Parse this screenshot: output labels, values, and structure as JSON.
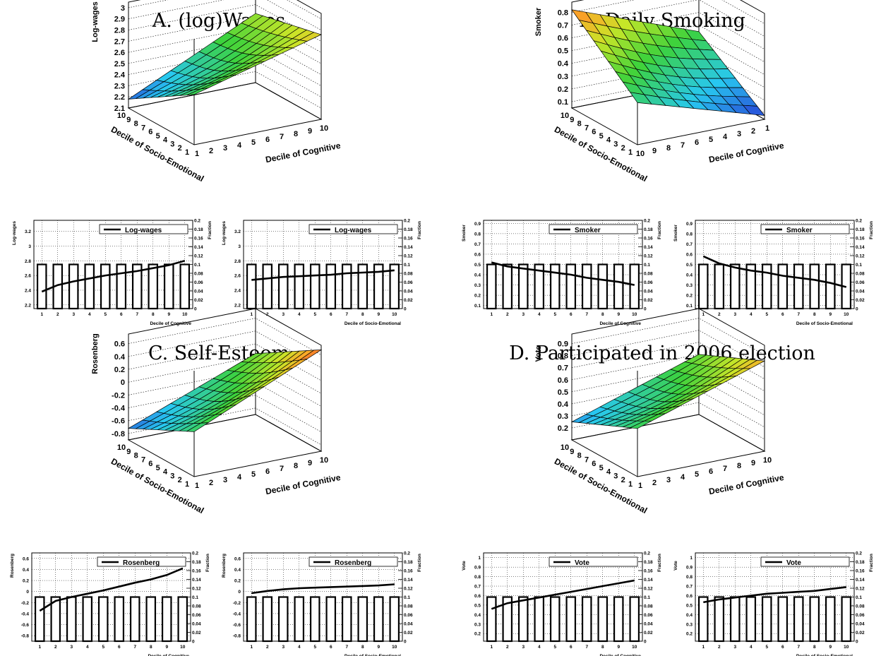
{
  "figure": {
    "panels": [
      {
        "letter": "A",
        "title": "A. (log)Wages"
      },
      {
        "letter": "B",
        "title": "B. Daily Smoking"
      },
      {
        "letter": "C",
        "title": "C. Self-Esteem"
      },
      {
        "letter": "D",
        "title": "D. Participated in 2006 election"
      }
    ]
  },
  "chart_data": [
    {
      "panel": "A",
      "type": "surface",
      "zlabel": "Log-wages",
      "xlabel": "Decile of Cognitive",
      "ylabel": "Decile of Socio-Emotional",
      "x": [
        1,
        2,
        3,
        4,
        5,
        6,
        7,
        8,
        9,
        10
      ],
      "y": [
        1,
        2,
        3,
        4,
        5,
        6,
        7,
        8,
        9,
        10
      ],
      "zlim": [
        2.1,
        3.05
      ],
      "zticks": [
        "2.1",
        "2.2",
        "2.3",
        "2.4",
        "2.5",
        "2.6",
        "2.7",
        "2.8",
        "2.9",
        "3"
      ],
      "corner_values": {
        "cog1_se1": 2.18,
        "cog10_se1": 2.72,
        "cog1_se10": 2.55,
        "cog10_se10": 2.86
      },
      "view": "cognitive-front"
    },
    {
      "panel": "A",
      "type": "bar+line",
      "xlabel": "Decile of Cognitive",
      "ylabel": "Log-wages",
      "y2label": "Fraction",
      "categories": [
        "1",
        "2",
        "3",
        "4",
        "5",
        "6",
        "7",
        "8",
        "9",
        "10"
      ],
      "bar_fraction": [
        0.1,
        0.1,
        0.1,
        0.1,
        0.1,
        0.1,
        0.1,
        0.1,
        0.1,
        0.1
      ],
      "series": [
        {
          "name": "Log-wages",
          "values": [
            2.38,
            2.47,
            2.52,
            2.56,
            2.6,
            2.63,
            2.66,
            2.7,
            2.74,
            2.8
          ]
        }
      ],
      "ylim": [
        2.15,
        3.35
      ],
      "y2lim": [
        0,
        0.2
      ],
      "yticks": [
        "2.2",
        "2.4",
        "2.6",
        "2.8",
        "3",
        "3.2"
      ],
      "y2ticks": [
        "0",
        "0.02",
        "0.04",
        "0.06",
        "0.08",
        "0.1",
        "0.12",
        "0.14",
        "0.16",
        "0.18",
        "0.2"
      ]
    },
    {
      "panel": "A",
      "type": "bar+line",
      "xlabel": "Decile of Socio-Emotional",
      "ylabel": "Log-wages",
      "y2label": "Fraction",
      "categories": [
        "1",
        "2",
        "3",
        "4",
        "5",
        "6",
        "7",
        "8",
        "9",
        "10"
      ],
      "bar_fraction": [
        0.1,
        0.1,
        0.1,
        0.1,
        0.1,
        0.1,
        0.1,
        0.1,
        0.1,
        0.1
      ],
      "series": [
        {
          "name": "Log-wages",
          "values": [
            2.54,
            2.56,
            2.58,
            2.59,
            2.6,
            2.61,
            2.63,
            2.64,
            2.65,
            2.67
          ]
        }
      ],
      "ylim": [
        2.15,
        3.35
      ],
      "y2lim": [
        0,
        0.2
      ],
      "yticks": [
        "2.2",
        "2.4",
        "2.6",
        "2.8",
        "3",
        "3.2"
      ],
      "y2ticks": [
        "0",
        "0.02",
        "0.04",
        "0.06",
        "0.08",
        "0.1",
        "0.12",
        "0.14",
        "0.16",
        "0.18",
        "0.2"
      ]
    },
    {
      "panel": "B",
      "type": "surface",
      "zlabel": "Smoker",
      "xlabel": "Decile of Cognitive",
      "ylabel": "Decile of Socio-Emotional",
      "x": [
        1,
        2,
        3,
        4,
        5,
        6,
        7,
        8,
        9,
        10
      ],
      "y": [
        1,
        2,
        3,
        4,
        5,
        6,
        7,
        8,
        9,
        10
      ],
      "zlim": [
        0.05,
        0.88
      ],
      "zticks": [
        "0.1",
        "0.2",
        "0.3",
        "0.4",
        "0.5",
        "0.6",
        "0.7",
        "0.8"
      ],
      "corner_values": {
        "cog1_se1": 0.82,
        "cog10_se1": 0.38,
        "cog1_se10": 0.45,
        "cog10_se10": 0.08
      },
      "view": "cognitive-reversed"
    },
    {
      "panel": "B",
      "type": "bar+line",
      "xlabel": "Decile of Cognitive",
      "ylabel": "Smoker",
      "y2label": "Fraction",
      "categories": [
        "1",
        "2",
        "3",
        "4",
        "5",
        "6",
        "7",
        "8",
        "9",
        "10"
      ],
      "bar_fraction": [
        0.1,
        0.1,
        0.1,
        0.1,
        0.1,
        0.1,
        0.1,
        0.1,
        0.1,
        0.1
      ],
      "series": [
        {
          "name": "Smoker",
          "values": [
            0.52,
            0.48,
            0.46,
            0.44,
            0.42,
            0.4,
            0.37,
            0.35,
            0.33,
            0.3
          ]
        }
      ],
      "ylim": [
        0.07,
        0.93
      ],
      "y2lim": [
        0,
        0.2
      ],
      "yticks": [
        "0.1",
        "0.2",
        "0.3",
        "0.4",
        "0.5",
        "0.6",
        "0.7",
        "0.8",
        "0.9"
      ],
      "y2ticks": [
        "0",
        "0.02",
        "0.04",
        "0.06",
        "0.08",
        "0.1",
        "0.12",
        "0.14",
        "0.16",
        "0.18",
        "0.2"
      ]
    },
    {
      "panel": "B",
      "type": "bar+line",
      "xlabel": "Decile of Socio-Emotional",
      "ylabel": "Smoker",
      "y2label": "Fraction",
      "categories": [
        "1",
        "2",
        "3",
        "4",
        "5",
        "6",
        "7",
        "8",
        "9",
        "10"
      ],
      "bar_fraction": [
        0.1,
        0.1,
        0.1,
        0.1,
        0.1,
        0.1,
        0.1,
        0.1,
        0.1,
        0.1
      ],
      "series": [
        {
          "name": "Smoker",
          "values": [
            0.58,
            0.51,
            0.47,
            0.44,
            0.42,
            0.39,
            0.37,
            0.35,
            0.32,
            0.28
          ]
        }
      ],
      "ylim": [
        0.07,
        0.93
      ],
      "y2lim": [
        0,
        0.2
      ],
      "yticks": [
        "0.1",
        "0.2",
        "0.3",
        "0.4",
        "0.5",
        "0.6",
        "0.7",
        "0.8",
        "0.9"
      ],
      "y2ticks": [
        "0",
        "0.02",
        "0.04",
        "0.06",
        "0.08",
        "0.1",
        "0.12",
        "0.14",
        "0.16",
        "0.18",
        "0.2"
      ]
    },
    {
      "panel": "C",
      "type": "surface",
      "zlabel": "Rosenberg",
      "xlabel": "Decile of Cognitive",
      "ylabel": "Decile of Socio-Emotional",
      "x": [
        1,
        2,
        3,
        4,
        5,
        6,
        7,
        8,
        9,
        10
      ],
      "y": [
        1,
        2,
        3,
        4,
        5,
        6,
        7,
        8,
        9,
        10
      ],
      "zlim": [
        -0.9,
        0.75
      ],
      "zticks": [
        "-0.8",
        "-0.6",
        "-0.4",
        "-0.2",
        "0",
        "0.2",
        "0.4",
        "0.6"
      ],
      "corner_values": {
        "cog1_se1": -0.72,
        "cog10_se1": 0.05,
        "cog1_se10": -0.2,
        "cog10_se10": 0.68
      },
      "view": "cognitive-front"
    },
    {
      "panel": "C",
      "type": "bar+line",
      "xlabel": "Decile of Cognitive",
      "ylabel": "Rosenberg",
      "y2label": "Fraction",
      "categories": [
        "1",
        "2",
        "3",
        "4",
        "5",
        "6",
        "7",
        "8",
        "9",
        "10"
      ],
      "bar_fraction": [
        0.1,
        0.1,
        0.1,
        0.1,
        0.1,
        0.1,
        0.1,
        0.1,
        0.1,
        0.1
      ],
      "series": [
        {
          "name": "Rosenberg",
          "values": [
            -0.35,
            -0.17,
            -0.1,
            -0.04,
            0.02,
            0.09,
            0.16,
            0.22,
            0.3,
            0.42
          ]
        }
      ],
      "ylim": [
        -0.9,
        0.7
      ],
      "y2lim": [
        0,
        0.2
      ],
      "yticks": [
        "-0.8",
        "-0.6",
        "-0.4",
        "-0.2",
        "0",
        "0.2",
        "0.4",
        "0.6"
      ],
      "y2ticks": [
        "0",
        "0.02",
        "0.04",
        "0.06",
        "0.08",
        "0.1",
        "0.12",
        "0.14",
        "0.16",
        "0.18",
        "0.2"
      ]
    },
    {
      "panel": "C",
      "type": "bar+line",
      "xlabel": "Decile of Socio-Emotional",
      "ylabel": "Rosenberg",
      "y2label": "Fraction",
      "categories": [
        "1",
        "2",
        "3",
        "4",
        "5",
        "6",
        "7",
        "8",
        "9",
        "10"
      ],
      "bar_fraction": [
        0.1,
        0.1,
        0.1,
        0.1,
        0.1,
        0.1,
        0.1,
        0.1,
        0.1,
        0.1
      ],
      "series": [
        {
          "name": "Rosenberg",
          "values": [
            -0.03,
            0.01,
            0.04,
            0.06,
            0.07,
            0.08,
            0.09,
            0.1,
            0.11,
            0.13
          ]
        }
      ],
      "ylim": [
        -0.9,
        0.7
      ],
      "y2lim": [
        0,
        0.2
      ],
      "yticks": [
        "-0.8",
        "-0.6",
        "-0.4",
        "-0.2",
        "0",
        "0.2",
        "0.4",
        "0.6"
      ],
      "y2ticks": [
        "0",
        "0.02",
        "0.04",
        "0.06",
        "0.08",
        "0.1",
        "0.12",
        "0.14",
        "0.16",
        "0.18",
        "0.2"
      ]
    },
    {
      "panel": "D",
      "type": "surface",
      "zlabel": "Vote",
      "xlabel": "Decile of Cognitive",
      "ylabel": "Decile of Socio-Emotional",
      "x": [
        1,
        2,
        3,
        4,
        5,
        6,
        7,
        8,
        9,
        10
      ],
      "y": [
        1,
        2,
        3,
        4,
        5,
        6,
        7,
        8,
        9,
        10
      ],
      "zlim": [
        0.1,
        0.98
      ],
      "zticks": [
        "0.2",
        "0.3",
        "0.4",
        "0.5",
        "0.6",
        "0.7",
        "0.8",
        "0.9"
      ],
      "corner_values": {
        "cog1_se1": 0.25,
        "cog10_se1": 0.6,
        "cog1_se10": 0.5,
        "cog10_se10": 0.85
      },
      "view": "cognitive-front"
    },
    {
      "panel": "D",
      "type": "bar+line",
      "xlabel": "Decile of Cognitive",
      "ylabel": "Vote",
      "y2label": "Fraction",
      "categories": [
        "1",
        "2",
        "3",
        "4",
        "5",
        "6",
        "7",
        "8",
        "9",
        "10"
      ],
      "bar_fraction": [
        0.1,
        0.1,
        0.1,
        0.1,
        0.1,
        0.1,
        0.1,
        0.1,
        0.1,
        0.1
      ],
      "series": [
        {
          "name": "Vote",
          "values": [
            0.46,
            0.52,
            0.55,
            0.58,
            0.61,
            0.64,
            0.67,
            0.7,
            0.73,
            0.76
          ]
        }
      ],
      "ylim": [
        0.12,
        1.05
      ],
      "y2lim": [
        0,
        0.2
      ],
      "yticks": [
        "0.2",
        "0.3",
        "0.4",
        "0.5",
        "0.6",
        "0.7",
        "0.8",
        "0.9",
        "1"
      ],
      "y2ticks": [
        "0",
        "0.02",
        "0.04",
        "0.06",
        "0.08",
        "0.1",
        "0.12",
        "0.14",
        "0.16",
        "0.18",
        "0.2"
      ]
    },
    {
      "panel": "D",
      "type": "bar+line",
      "xlabel": "Decile of Socio-Emotional",
      "ylabel": "Vote",
      "y2label": "Fraction",
      "categories": [
        "1",
        "2",
        "3",
        "4",
        "5",
        "6",
        "7",
        "8",
        "9",
        "10"
      ],
      "bar_fraction": [
        0.1,
        0.1,
        0.1,
        0.1,
        0.1,
        0.1,
        0.1,
        0.1,
        0.1,
        0.1
      ],
      "series": [
        {
          "name": "Vote",
          "values": [
            0.53,
            0.56,
            0.58,
            0.6,
            0.62,
            0.63,
            0.64,
            0.65,
            0.67,
            0.69
          ]
        }
      ],
      "ylim": [
        0.12,
        1.05
      ],
      "y2lim": [
        0,
        0.2
      ],
      "yticks": [
        "0.2",
        "0.3",
        "0.4",
        "0.5",
        "0.6",
        "0.7",
        "0.8",
        "0.9",
        "1"
      ],
      "y2ticks": [
        "0",
        "0.02",
        "0.04",
        "0.06",
        "0.08",
        "0.1",
        "0.12",
        "0.14",
        "0.16",
        "0.18",
        "0.2"
      ]
    }
  ]
}
